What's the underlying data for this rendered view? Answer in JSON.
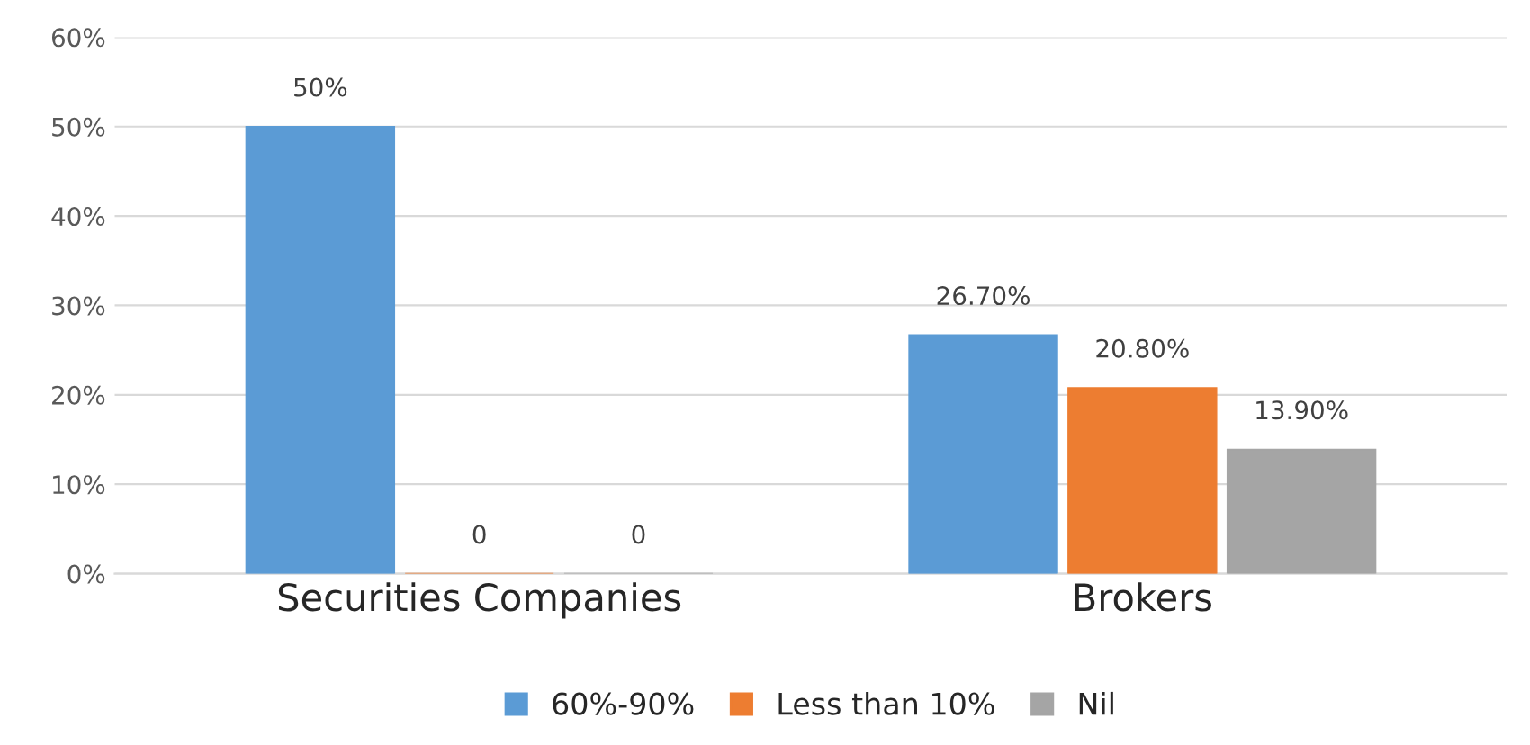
{
  "chart_data": {
    "type": "bar",
    "categories": [
      "Securities Companies",
      "Brokers"
    ],
    "series": [
      {
        "name": "60%-90%",
        "color": "#5b9bd5",
        "values": [
          50,
          26.7
        ],
        "value_labels": [
          "50%",
          "26.70%"
        ]
      },
      {
        "name": "Less than 10%",
        "color": "#ed7d31",
        "values": [
          0,
          20.8
        ],
        "value_labels": [
          "0",
          "20.80%"
        ]
      },
      {
        "name": "Nil",
        "color": "#a5a5a5",
        "values": [
          0,
          13.9
        ],
        "value_labels": [
          "0",
          "13.90%"
        ]
      }
    ],
    "ylim": [
      0,
      60
    ],
    "yticks": [
      {
        "value": 0,
        "label": "0%"
      },
      {
        "value": 10,
        "label": "10%"
      },
      {
        "value": 20,
        "label": "20%"
      },
      {
        "value": 30,
        "label": "30%"
      },
      {
        "value": 40,
        "label": "40%"
      },
      {
        "value": 50,
        "label": "50%"
      },
      {
        "value": 60,
        "label": "60%"
      }
    ],
    "grid": "y",
    "legend": "bottom"
  }
}
